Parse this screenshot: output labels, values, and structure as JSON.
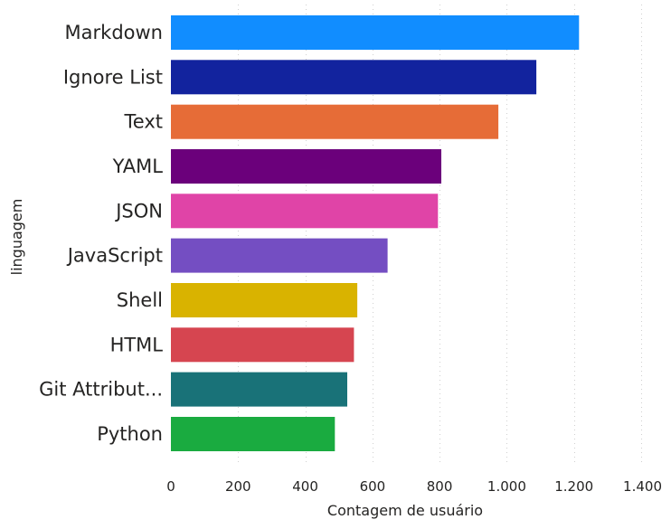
{
  "chart_data": {
    "type": "bar",
    "orientation": "horizontal",
    "title": "",
    "xlabel": "Contagem de usuário",
    "ylabel": "linguagem",
    "xlim": [
      0,
      1400
    ],
    "xticks": [
      0,
      200,
      400,
      600,
      800,
      1000,
      1200,
      1400
    ],
    "xtick_labels": [
      "0",
      "200",
      "400",
      "600",
      "800",
      "1.000",
      "1.200",
      "1.400"
    ],
    "grid": true,
    "categories": [
      "Markdown",
      "Ignore List",
      "Text",
      "YAML",
      "JSON",
      "JavaScript",
      "Shell",
      "HTML",
      "Git Attribut...",
      "Python"
    ],
    "values": [
      1215,
      1088,
      975,
      805,
      795,
      645,
      555,
      545,
      525,
      488
    ],
    "colors": [
      "#118DFF",
      "#12239E",
      "#E66C37",
      "#6B007B",
      "#E044A7",
      "#744EC2",
      "#D9B300",
      "#D64550",
      "#197278",
      "#1AAB40"
    ]
  }
}
